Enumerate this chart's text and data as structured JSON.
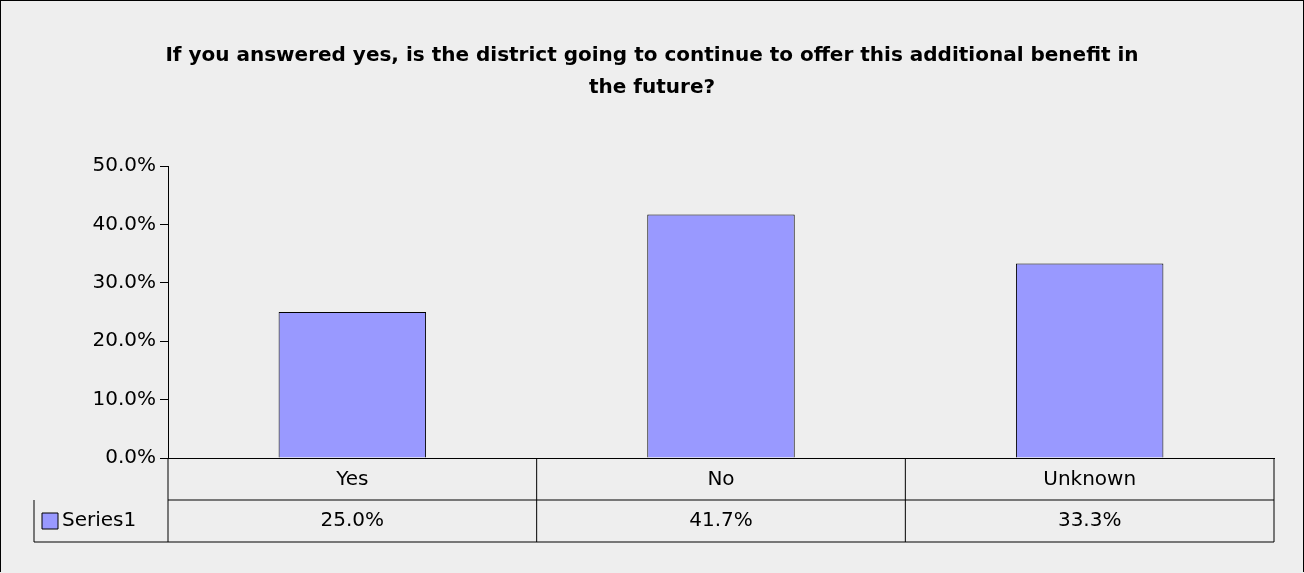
{
  "chart_data": {
    "type": "bar",
    "title": "If you answered yes, is the district going to continue to offer this additional benefit in the future?",
    "categories": [
      "Yes",
      "No",
      "Unknown"
    ],
    "series": [
      {
        "name": "Series1",
        "color": "#9999ff",
        "values": [
          25.0,
          41.7,
          33.3
        ],
        "value_labels": [
          "25.0%",
          "41.7%",
          "33.3%"
        ]
      }
    ],
    "ylim": [
      0,
      50
    ],
    "yticks": [
      {
        "value": 0,
        "label": "0.0%"
      },
      {
        "value": 10,
        "label": "10.0%"
      },
      {
        "value": 20,
        "label": "20.0%"
      },
      {
        "value": 30,
        "label": "30.0%"
      },
      {
        "value": 40,
        "label": "40.0%"
      },
      {
        "value": 50,
        "label": "50.0%"
      }
    ],
    "grid": false,
    "legend": "bottom"
  }
}
